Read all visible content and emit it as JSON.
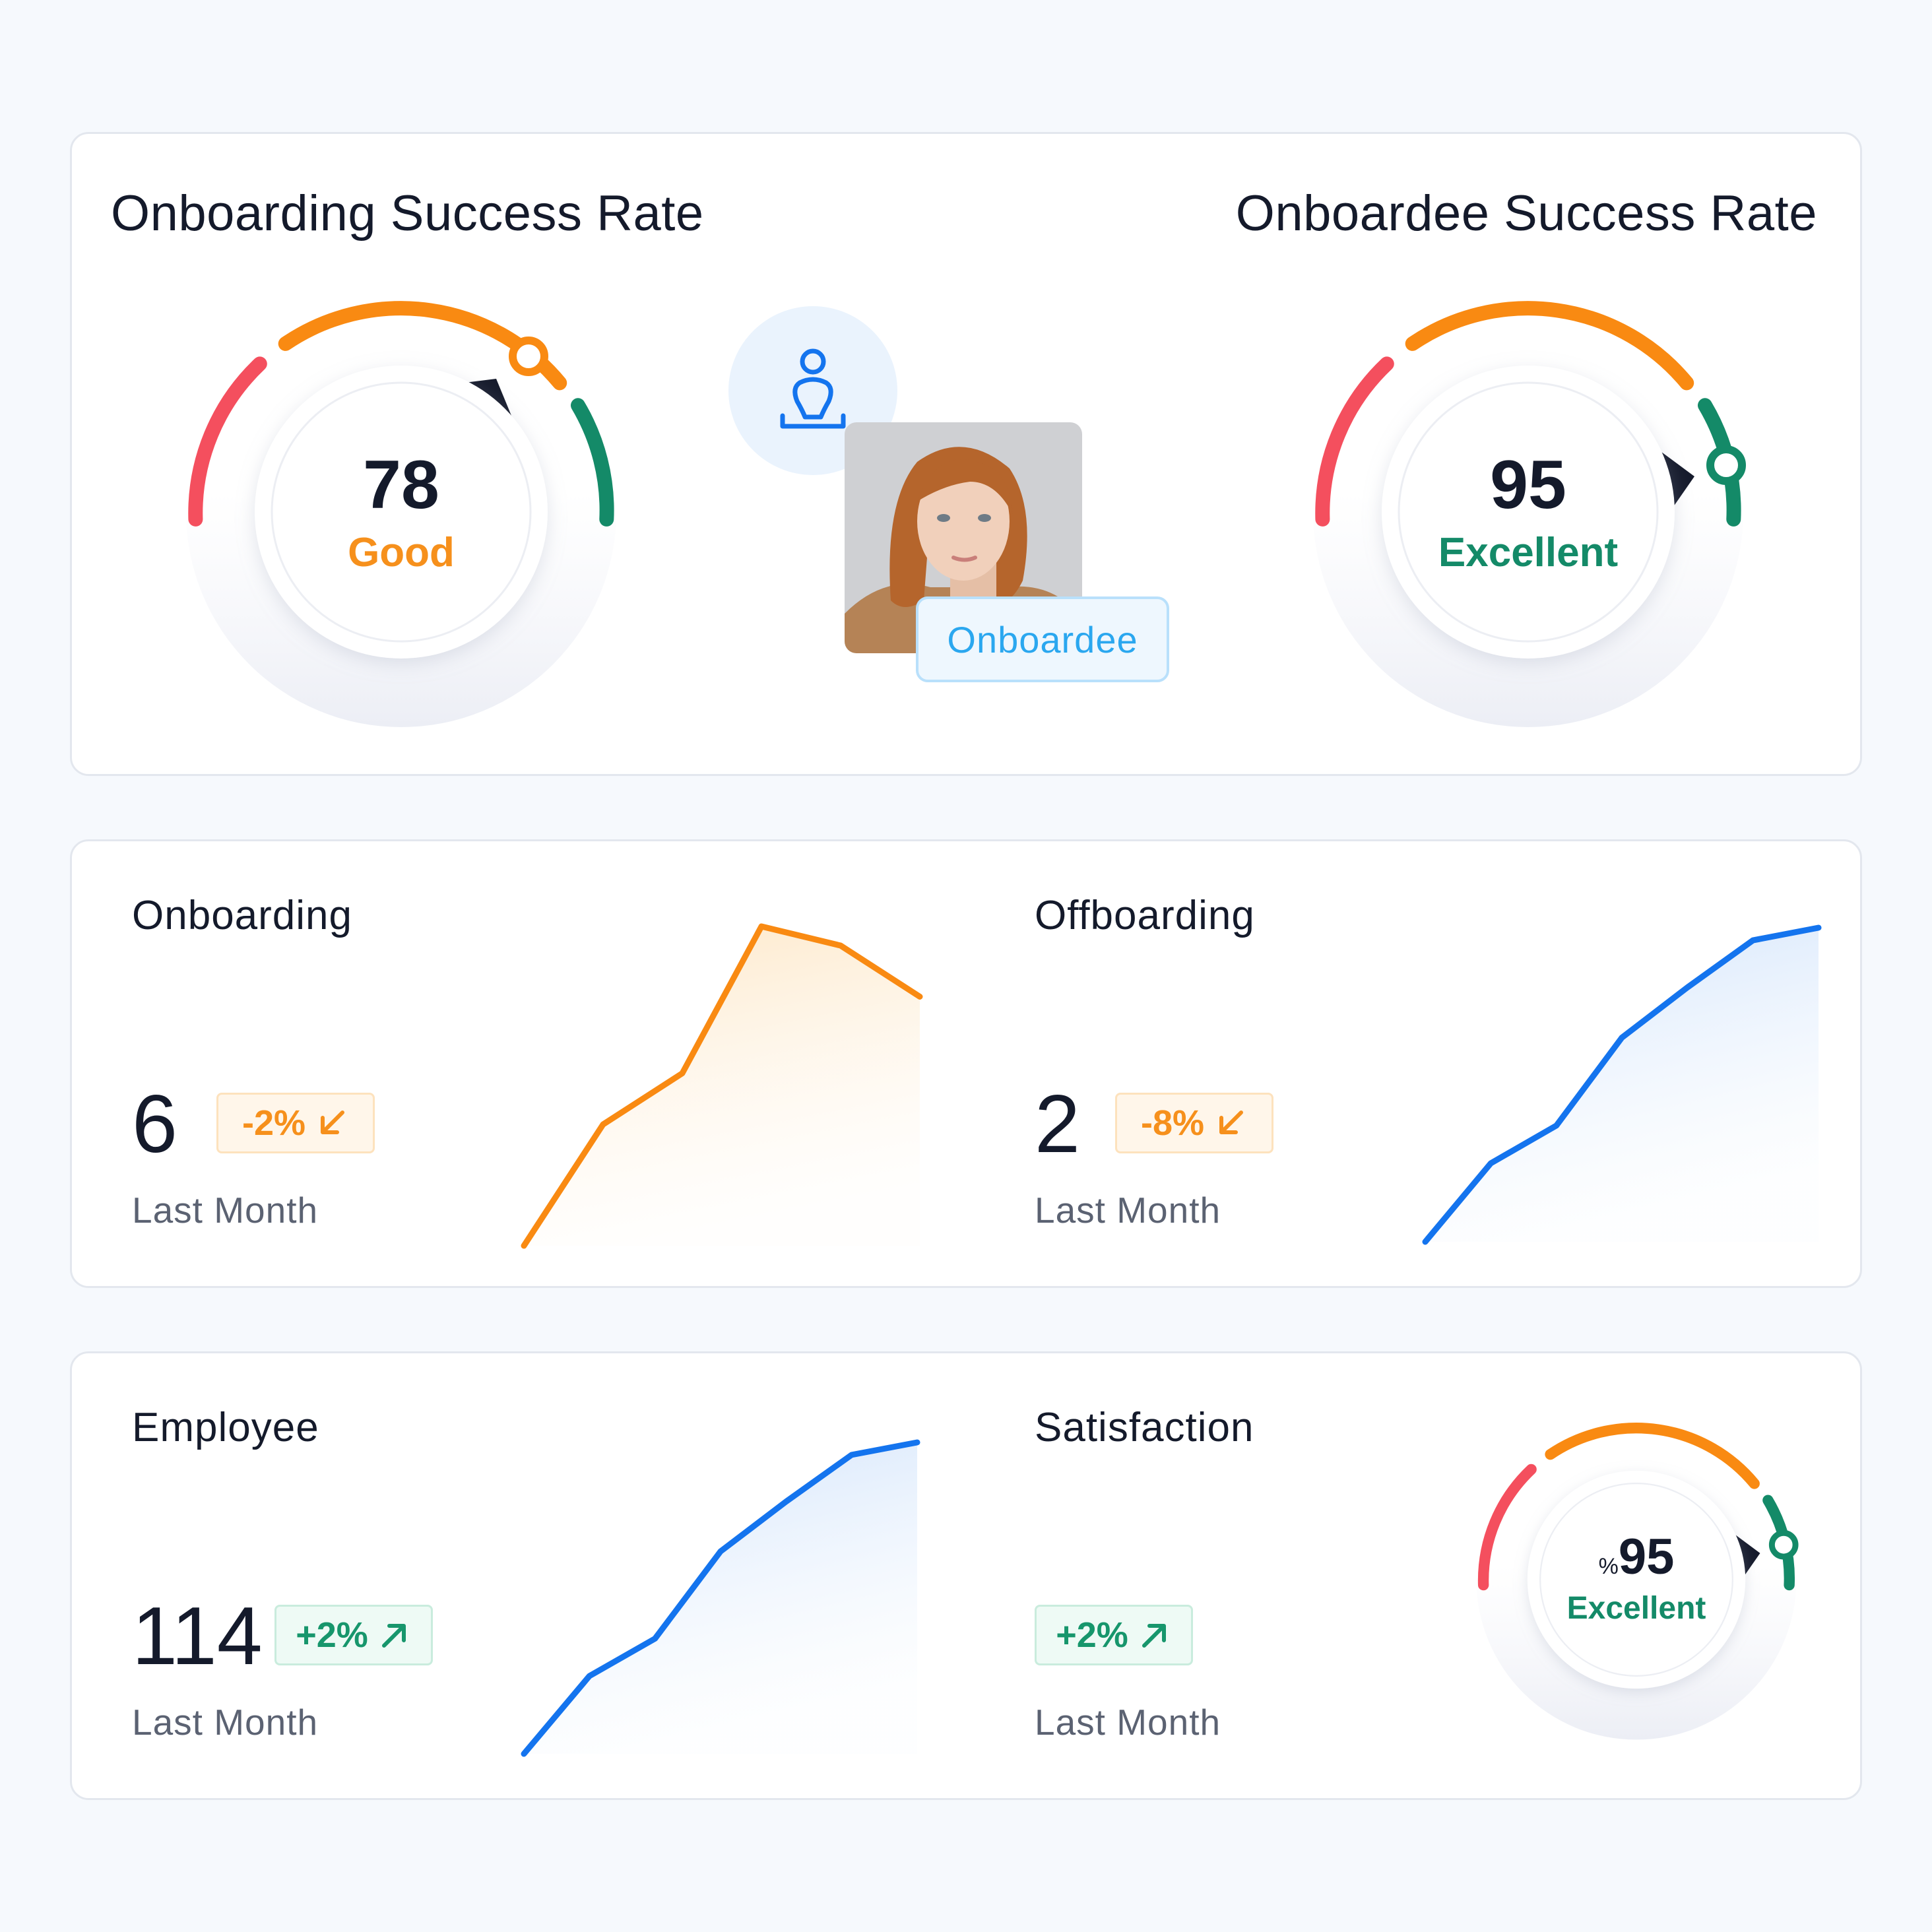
{
  "success_rates": {
    "onboarding": {
      "title": "Onboarding Success Rate",
      "value": "78",
      "label": "Good",
      "label_color": "#f6901c",
      "level": 0.78
    },
    "onboardee": {
      "title": "Onboardee Success Rate",
      "value": "95",
      "label": "Excellent",
      "label_color": "#148a68",
      "level": 0.95
    },
    "person_icon": "user-outline-icon",
    "onboardee_tag": "Onboardee"
  },
  "stats": {
    "onboarding": {
      "title": "Onboarding",
      "value": "6",
      "change": "-2%",
      "direction": "down",
      "caption": "Last Month",
      "trend_color": "#f98a12"
    },
    "offboarding": {
      "title": "Offboarding",
      "value": "2",
      "change": "-8%",
      "direction": "down",
      "caption": "Last Month",
      "trend_color": "#1474ee"
    },
    "employee": {
      "title": "Employee",
      "value": "114",
      "change": "+2%",
      "direction": "up",
      "caption": "Last Month",
      "trend_color": "#1474ee"
    },
    "satisfaction": {
      "title": "Satisfaction",
      "value_prefix": "%",
      "value": "95",
      "label": "Excellent",
      "change": "+2%",
      "direction": "up",
      "caption": "Last Month",
      "level": 0.95
    }
  },
  "colors": {
    "low": "#f44f5e",
    "mid": "#f98a12",
    "high": "#148a68",
    "blue": "#1474ee",
    "down_badge": "#f6901c",
    "up_badge": "#17966c"
  },
  "chart_data": [
    {
      "type": "area",
      "title": "Onboarding",
      "x": [
        0,
        1,
        2,
        3,
        4,
        5
      ],
      "values": [
        0,
        38,
        54,
        100,
        94,
        78
      ]
    },
    {
      "type": "area",
      "title": "Offboarding",
      "x": [
        0,
        1,
        2,
        3,
        4,
        5,
        6
      ],
      "values": [
        0,
        25,
        37,
        65,
        81,
        96,
        100
      ]
    },
    {
      "type": "area",
      "title": "Employee",
      "x": [
        0,
        1,
        2,
        3,
        4,
        5,
        6
      ],
      "values": [
        0,
        25,
        37,
        65,
        81,
        96,
        100
      ]
    }
  ]
}
